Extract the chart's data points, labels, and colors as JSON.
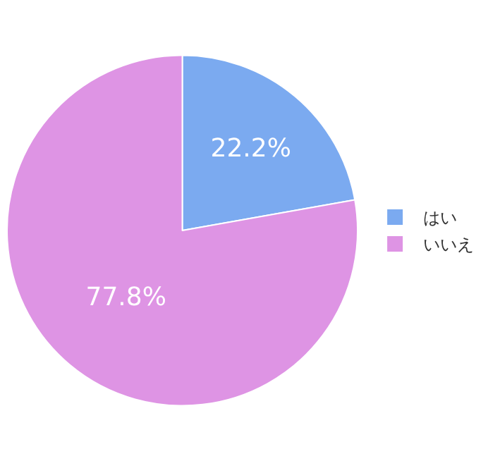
{
  "chart_data": {
    "type": "pie",
    "categories": [
      "はい",
      "いいえ"
    ],
    "values": [
      22.2,
      77.8
    ],
    "colors": [
      "#7baaf0",
      "#de94e4"
    ],
    "value_labels": [
      "22.2%",
      "77.8%"
    ],
    "legend": "right"
  }
}
